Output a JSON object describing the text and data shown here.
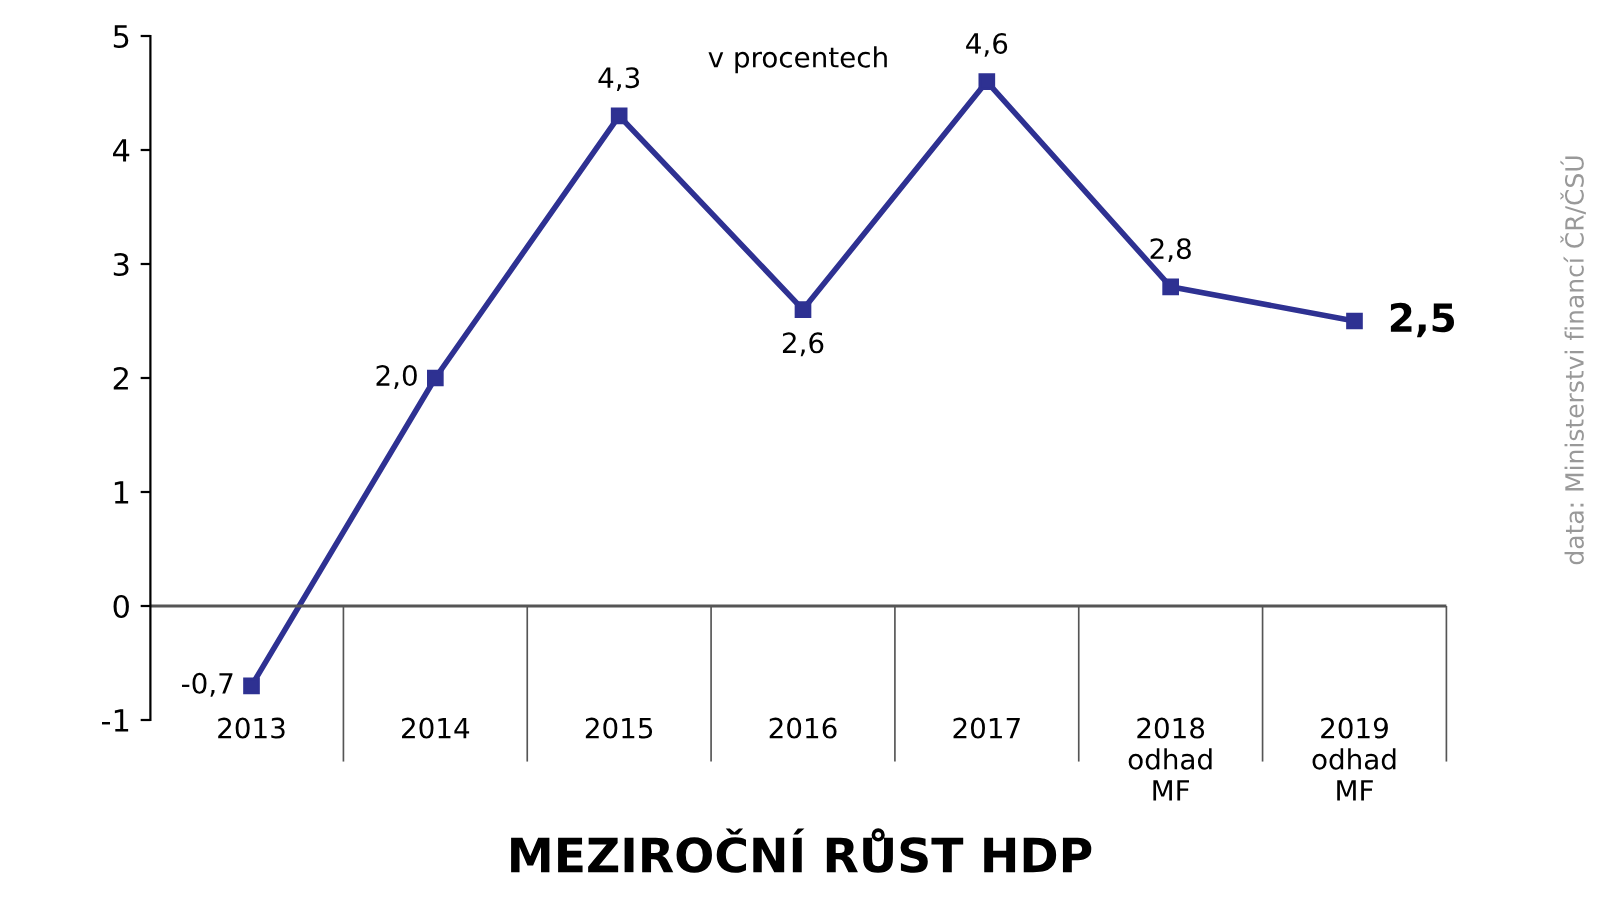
{
  "chart_data": {
    "type": "line",
    "title": "MEZIROČNÍ RŮST HDP",
    "subtitle": "v procentech",
    "categories": [
      "2013",
      "2014",
      "2015",
      "2016",
      "2017",
      "2018\nodhad\nMF",
      "2019\nodhad\nMF"
    ],
    "series": [
      {
        "color": "#2e3192",
        "values": [
          -0.7,
          2.0,
          4.3,
          2.6,
          4.6,
          2.8,
          2.5
        ],
        "value_labels": [
          "-0,7",
          "2,0",
          "4,3",
          "2,6",
          "4,6",
          "2,8",
          "2,5"
        ]
      }
    ],
    "ylim": [
      -1,
      5
    ],
    "yticks": [
      -1,
      0,
      1,
      2,
      3,
      4,
      5
    ],
    "marker": "square",
    "line_style": "solid",
    "grid": false,
    "ref_lines": [
      {
        "axis": "y",
        "value": 0,
        "color": "#555555"
      }
    ],
    "legend": false,
    "annotations": [
      "data: Ministerstvi financí ČR/ČSÚ"
    ]
  }
}
